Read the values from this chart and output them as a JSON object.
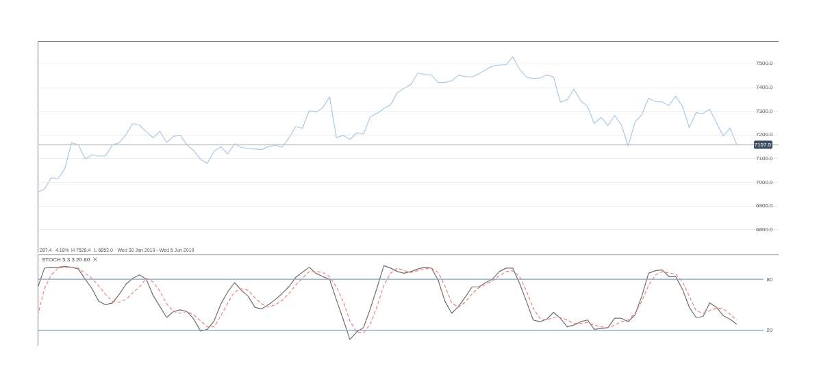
{
  "chart_data": [
    {
      "type": "line",
      "categories": [
        null,
        null,
        null,
        null,
        null,
        null,
        null,
        null,
        null,
        null,
        null,
        null,
        null,
        null,
        null,
        null,
        null,
        null,
        null,
        null,
        null,
        null,
        null,
        null,
        null,
        null,
        null,
        null,
        null,
        null,
        null,
        null,
        null,
        null,
        null,
        null,
        null,
        null,
        null,
        null,
        null,
        null,
        null,
        null,
        null,
        null,
        null,
        null,
        null,
        null,
        null,
        null,
        null,
        null,
        null,
        null,
        null,
        null,
        null,
        null,
        null,
        null,
        null,
        null,
        null,
        null,
        null,
        null,
        null,
        null,
        null,
        null,
        null,
        null,
        null,
        null,
        null,
        null,
        null,
        null,
        null,
        null,
        null,
        null,
        null,
        null,
        null,
        null,
        null,
        null,
        null,
        null,
        null,
        null,
        null,
        null,
        null,
        null,
        null,
        null,
        null,
        null,
        null,
        null
      ],
      "series": [
        {
          "color": "#a9c9e9",
          "values": [
            6957,
            6970,
            7018,
            7014,
            7056,
            7167,
            7157,
            7098,
            7115,
            7110,
            7111,
            7156,
            7166,
            7200,
            7247,
            7240,
            7213,
            7187,
            7214,
            7167,
            7193,
            7197,
            7157,
            7133,
            7095,
            7079,
            7130,
            7149,
            7118,
            7161,
            7146,
            7142,
            7140,
            7137,
            7150,
            7156,
            7148,
            7185,
            7234,
            7227,
            7301,
            7296,
            7313,
            7360,
            7188,
            7197,
            7180,
            7208,
            7202,
            7275,
            7290,
            7310,
            7326,
            7378,
            7396,
            7412,
            7460,
            7454,
            7451,
            7420,
            7420,
            7427,
            7451,
            7445,
            7443,
            7457,
            7473,
            7490,
            7494,
            7495,
            7528,
            7476,
            7443,
            7437,
            7439,
            7452,
            7444,
            7337,
            7347,
            7392,
            7343,
            7319,
            7247,
            7273,
            7239,
            7281,
            7240,
            7152,
            7253,
            7284,
            7354,
            7340,
            7338,
            7323,
            7362,
            7319,
            7229,
            7293,
            7289,
            7307,
            7250,
            7194,
            7228,
            7157.5
          ]
        }
      ],
      "ylim": [
        6700,
        7595
      ],
      "yticks": [
        {
          "value": 6800,
          "label": "6800.0"
        },
        {
          "value": 6900,
          "label": "6900.0"
        },
        {
          "value": 7000,
          "label": "7000.0"
        },
        {
          "value": 7100,
          "label": "7100.0"
        },
        {
          "value": 7200,
          "label": "7200.0"
        },
        {
          "value": 7300,
          "label": "7300.0"
        },
        {
          "value": 7400,
          "label": "7400.0"
        },
        {
          "value": 7500,
          "label": "7500.0"
        }
      ],
      "grid": "y",
      "tick_labels": "y",
      "marker": "none",
      "line_style": "solid",
      "ref_lines": [
        {
          "axis": "y",
          "value": 7157.5,
          "label": "7157.5",
          "color": "#c8c8c8"
        }
      ],
      "annotations": [
        "287.4",
        "4.18%",
        "H 7528.4",
        "L 6853.0",
        "Wed 30 Jan 2019 - Wed 5 Jun 2019"
      ]
    },
    {
      "type": "line",
      "title": "STOCH 5 3 3 20 80",
      "categories": [
        null,
        null,
        null,
        null,
        null,
        null,
        null,
        null,
        null,
        null,
        null,
        null,
        null,
        null,
        null,
        null,
        null,
        null,
        null,
        null,
        null,
        null,
        null,
        null,
        null,
        null,
        null,
        null,
        null,
        null,
        null,
        null,
        null,
        null,
        null,
        null,
        null,
        null,
        null,
        null,
        null,
        null,
        null,
        null,
        null,
        null,
        null,
        null,
        null,
        null,
        null,
        null,
        null,
        null,
        null,
        null,
        null,
        null,
        null,
        null,
        null,
        null,
        null,
        null,
        null,
        null,
        null,
        null,
        null,
        null,
        null,
        null,
        null,
        null,
        null,
        null,
        null,
        null,
        null,
        null,
        null,
        null,
        null,
        null,
        null,
        null,
        null,
        null,
        null,
        null,
        null,
        null,
        null,
        null,
        null,
        null,
        null,
        null,
        null,
        null,
        null,
        null,
        null,
        null
      ],
      "series": [
        {
          "color": "#6e6e6e",
          "line_style": "solid",
          "values": [
            70,
            93,
            94,
            94,
            95,
            94,
            92,
            80,
            69,
            54,
            50,
            52,
            62,
            74,
            81,
            85,
            80,
            61,
            48,
            35,
            42,
            44,
            42,
            33,
            19,
            21,
            31,
            51,
            65,
            76,
            67,
            60,
            47,
            45,
            50,
            56,
            63,
            71,
            82,
            88,
            94,
            87,
            83,
            80,
            56,
            33,
            9,
            18,
            23,
            45,
            70,
            96,
            93,
            89,
            87,
            89,
            92,
            94,
            93,
            79,
            54,
            40,
            48,
            59,
            71,
            71,
            76,
            80,
            89,
            93,
            93,
            75,
            54,
            32,
            30,
            33,
            41,
            34,
            24,
            26,
            30,
            32,
            21,
            22,
            23,
            34,
            34,
            30,
            38,
            60,
            87,
            90,
            91,
            83,
            83,
            68,
            47,
            35,
            36,
            52,
            47,
            37,
            33,
            27
          ]
        },
        {
          "color": "#f08080",
          "line_style": "dashed",
          "values": [
            37,
            69,
            85,
            93,
            94,
            94,
            93,
            87,
            81,
            72,
            62,
            54,
            53,
            56,
            64,
            71,
            81,
            77,
            66,
            51,
            42,
            40,
            42,
            38,
            31,
            24,
            24,
            37,
            52,
            65,
            69,
            67,
            58,
            51,
            47,
            50,
            55,
            63,
            73,
            81,
            89,
            89,
            88,
            83,
            71,
            54,
            31,
            18,
            17,
            27,
            48,
            73,
            87,
            93,
            90,
            88,
            90,
            92,
            93,
            88,
            72,
            52,
            47,
            53,
            63,
            70,
            74,
            78,
            84,
            89,
            90,
            83,
            66,
            46,
            34,
            32,
            35,
            35,
            32,
            28,
            28,
            29,
            26,
            24,
            23,
            26,
            30,
            32,
            40,
            54,
            73,
            85,
            89,
            87,
            86,
            77,
            60,
            43,
            40,
            43,
            46,
            45,
            39,
            32
          ]
        }
      ],
      "ylim": [
        2,
        109
      ],
      "yticks": [
        20,
        80
      ],
      "tick_labels": "y",
      "marker": "none",
      "ref_lines": [
        {
          "axis": "y",
          "value": 80,
          "color": "#7f9fc0"
        },
        {
          "axis": "y",
          "value": 20,
          "color": "#7f9fc0"
        }
      ]
    }
  ]
}
